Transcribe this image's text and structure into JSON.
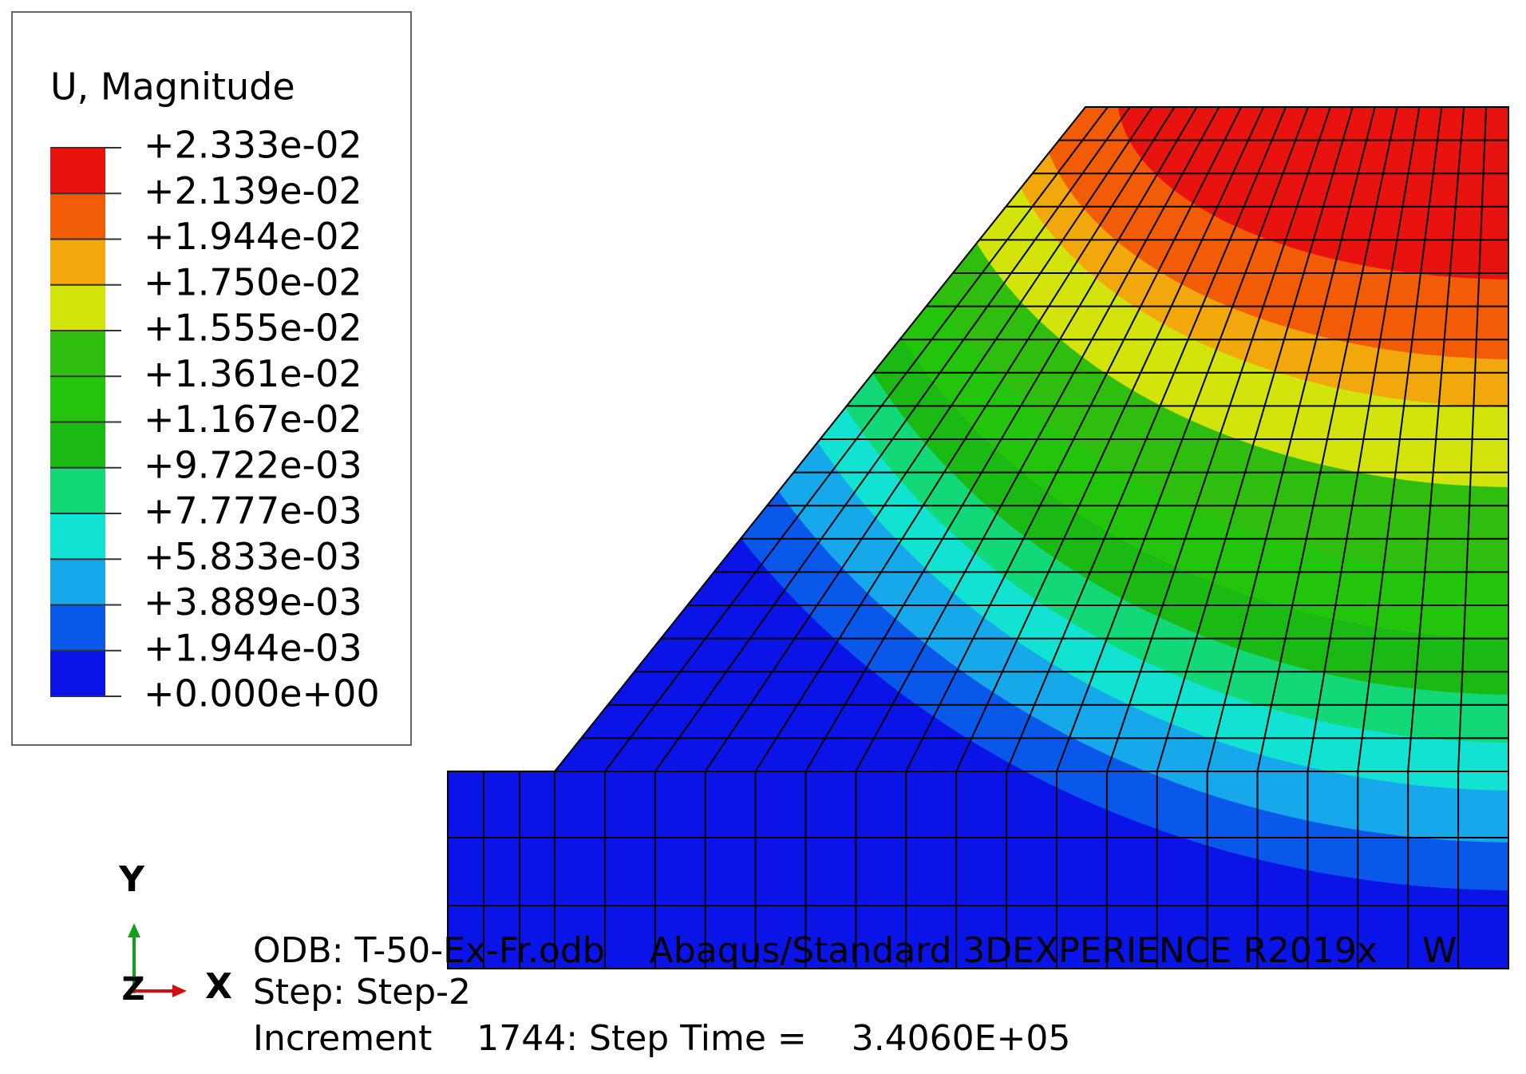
{
  "legend": {
    "title": "U, Magnitude",
    "labels": [
      "+2.333e-02",
      "+2.139e-02",
      "+1.944e-02",
      "+1.750e-02",
      "+1.555e-02",
      "+1.361e-02",
      "+1.167e-02",
      "+9.722e-03",
      "+7.777e-03",
      "+5.833e-03",
      "+3.889e-03",
      "+1.944e-03",
      "+0.000e+00"
    ],
    "colors": [
      "#e8120e",
      "#f25c06",
      "#f2a80c",
      "#d2e40c",
      "#2fbe0f",
      "#22c40c",
      "#1ab914",
      "#12d878",
      "#12e2d2",
      "#16a8ea",
      "#0a58ea",
      "#0a14e6"
    ]
  },
  "triad": {
    "y": "Y",
    "z": "Z",
    "x": "X"
  },
  "info": {
    "odb": "ODB: T-50-Ex-Fr.odb    Abaqus/Standard 3DEXPERIENCE R2019x    W",
    "step": "Step: Step-2",
    "increment": "Increment    1744: Step Time =    3.4060E+05"
  }
}
